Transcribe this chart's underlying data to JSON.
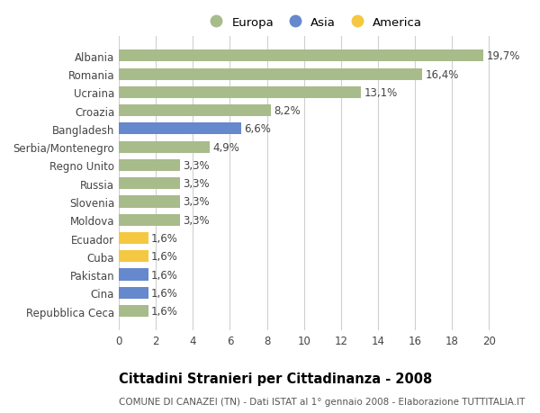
{
  "categories": [
    "Repubblica Ceca",
    "Cina",
    "Pakistan",
    "Cuba",
    "Ecuador",
    "Moldova",
    "Slovenia",
    "Russia",
    "Regno Unito",
    "Serbia/Montenegro",
    "Bangladesh",
    "Croazia",
    "Ucraina",
    "Romania",
    "Albania"
  ],
  "values": [
    1.6,
    1.6,
    1.6,
    1.6,
    1.6,
    3.3,
    3.3,
    3.3,
    3.3,
    4.9,
    6.6,
    8.2,
    13.1,
    16.4,
    19.7
  ],
  "labels": [
    "1,6%",
    "1,6%",
    "1,6%",
    "1,6%",
    "1,6%",
    "3,3%",
    "3,3%",
    "3,3%",
    "3,3%",
    "4,9%",
    "6,6%",
    "8,2%",
    "13,1%",
    "16,4%",
    "19,7%"
  ],
  "colors": [
    "#a8bb8a",
    "#6688cc",
    "#6688cc",
    "#f5c842",
    "#f5c842",
    "#a8bb8a",
    "#a8bb8a",
    "#a8bb8a",
    "#a8bb8a",
    "#a8bb8a",
    "#6688cc",
    "#a8bb8a",
    "#a8bb8a",
    "#a8bb8a",
    "#a8bb8a"
  ],
  "legend_labels": [
    "Europa",
    "Asia",
    "America"
  ],
  "legend_colors": [
    "#a8bb8a",
    "#6688cc",
    "#f5c842"
  ],
  "xlim": [
    0,
    21
  ],
  "xticks": [
    0,
    2,
    4,
    6,
    8,
    10,
    12,
    14,
    16,
    18,
    20
  ],
  "title": "Cittadini Stranieri per Cittadinanza - 2008",
  "subtitle": "COMUNE DI CANAZEI (TN) - Dati ISTAT al 1° gennaio 2008 - Elaborazione TUTTITALIA.IT",
  "bg_color": "#ffffff",
  "grid_color": "#d0d0d0",
  "bar_height": 0.65,
  "label_fontsize": 8.5,
  "tick_fontsize": 8.5,
  "title_fontsize": 10.5,
  "subtitle_fontsize": 7.5
}
